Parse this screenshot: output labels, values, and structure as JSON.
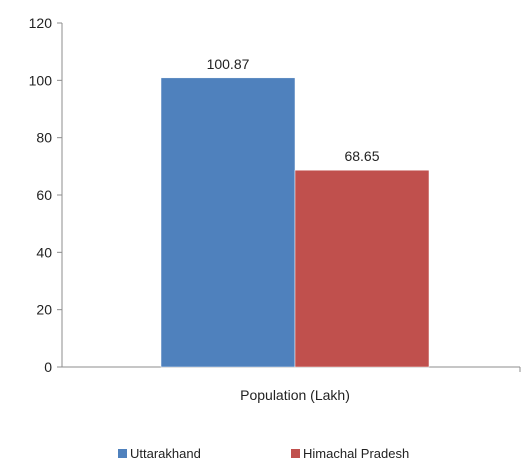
{
  "chart_data": {
    "type": "bar",
    "categories": [
      "Population (Lakh)"
    ],
    "series": [
      {
        "name": "Uttarakhand",
        "values": [
          100.87
        ],
        "color": "#4f81bd"
      },
      {
        "name": "Himachal Pradesh",
        "values": [
          68.65
        ],
        "color": "#c0504d"
      }
    ],
    "data_labels": [
      "100.87",
      "68.65"
    ],
    "title": "",
    "xlabel": "",
    "ylabel": "",
    "ylim": [
      0,
      120
    ],
    "yticks": [
      0,
      20,
      40,
      60,
      80,
      100,
      120
    ],
    "grid": false,
    "legend_position": "bottom"
  }
}
